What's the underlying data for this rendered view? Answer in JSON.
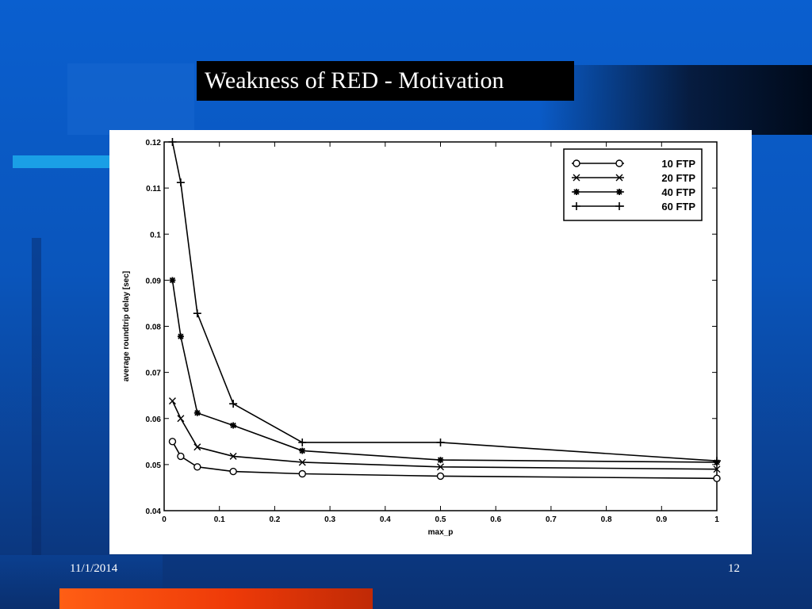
{
  "slide": {
    "title": "Weakness of RED - Motivation",
    "date": "11/1/2014",
    "page_number": "12"
  },
  "colors": {
    "background": "#0a55bb",
    "title_box": "#000000",
    "accent_cyan": "#1a9fe6",
    "accent_orange": "#ff5e14",
    "plot_line": "#000000"
  },
  "chart_data": {
    "type": "line",
    "title": "",
    "xlabel": "max_p",
    "ylabel": "average roundtrip delay [sec]",
    "xlim": [
      0,
      1
    ],
    "ylim": [
      0.04,
      0.12
    ],
    "x_ticks": [
      "0",
      "0.1",
      "0.2",
      "0.3",
      "0.4",
      "0.5",
      "0.6",
      "0.7",
      "0.8",
      "0.9",
      "1"
    ],
    "y_ticks": [
      "0.04",
      "0.05",
      "0.06",
      "0.07",
      "0.08",
      "0.09",
      "0.1",
      "0.11",
      "0.12"
    ],
    "grid": false,
    "legend_position": "top-right",
    "x": [
      0.015,
      0.03,
      0.06,
      0.125,
      0.25,
      0.5,
      1.0
    ],
    "series": [
      {
        "name": "10 FTP",
        "marker": "circle",
        "values": [
          0.055,
          0.0518,
          0.0495,
          0.0485,
          0.048,
          0.0475,
          0.047
        ]
      },
      {
        "name": "20 FTP",
        "marker": "x",
        "values": [
          0.0638,
          0.06,
          0.0538,
          0.0518,
          0.0505,
          0.0495,
          0.049
        ]
      },
      {
        "name": "40 FTP",
        "marker": "star",
        "values": [
          0.09,
          0.0778,
          0.0612,
          0.0585,
          0.053,
          0.051,
          0.0505
        ]
      },
      {
        "name": "60 FTP",
        "marker": "plus",
        "values": [
          0.12,
          0.1112,
          0.0828,
          0.0632,
          0.0548,
          0.0548,
          0.0508
        ]
      }
    ]
  }
}
